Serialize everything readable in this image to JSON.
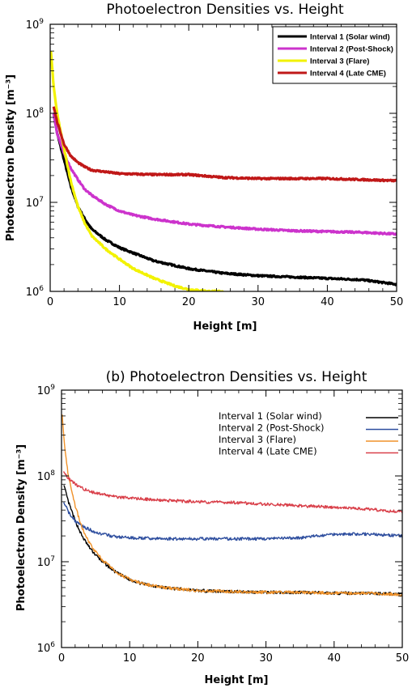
{
  "chart_data": [
    {
      "type": "line",
      "title": "Photoelectron Densities vs. Height",
      "xlabel": "Height [m]",
      "ylabel": "Photoelectron Density [m⁻³]",
      "xlim": [
        0,
        50
      ],
      "ylim": [
        1000000,
        1000000000
      ],
      "yscale": "log",
      "xticks": [
        "0",
        "10",
        "20",
        "30",
        "40",
        "50"
      ],
      "yticks": [
        {
          "base": "10",
          "exp": "6"
        },
        {
          "base": "10",
          "exp": "7"
        },
        {
          "base": "10",
          "exp": "8"
        },
        {
          "base": "10",
          "exp": "9"
        }
      ],
      "legend_position": "top-right",
      "series": [
        {
          "name": "Interval 1 (Solar wind)",
          "color": "#000000",
          "x": [
            0.5,
            1,
            2,
            3,
            4,
            5,
            6,
            8,
            10,
            12,
            15,
            20,
            25,
            30,
            35,
            40,
            45,
            50
          ],
          "y": [
            100000000,
            60000000,
            30000000,
            15000000,
            9000000,
            6500000,
            5000000,
            3800000,
            3100000,
            2700000,
            2200000,
            1800000,
            1600000,
            1500000,
            1450000,
            1400000,
            1350000,
            1200000
          ]
        },
        {
          "name": "Interval 2 (Post-Shock)",
          "color": "#cc33cc",
          "x": [
            0.5,
            1,
            2,
            3,
            4,
            5,
            6,
            8,
            10,
            12,
            15,
            20,
            25,
            30,
            35,
            40,
            45,
            50
          ],
          "y": [
            100000000,
            60000000,
            35000000,
            24000000,
            18000000,
            14000000,
            12000000,
            9500000,
            8000000,
            7200000,
            6500000,
            5700000,
            5300000,
            5000000,
            4800000,
            4700000,
            4600000,
            4400000
          ]
        },
        {
          "name": "Interval 3 (Flare)",
          "color": "#f2f200",
          "x": [
            0.1,
            0.5,
            1,
            2,
            3,
            4,
            5,
            6,
            8,
            10,
            12,
            15,
            18,
            20,
            23,
            25
          ],
          "y": [
            500000000,
            200000000,
            100000000,
            40000000,
            17000000,
            9000000,
            5800000,
            4200000,
            3000000,
            2300000,
            1800000,
            1400000,
            1150000,
            1050000,
            1000000,
            1000000
          ]
        },
        {
          "name": "Interval 4 (Late CME)",
          "color": "#c01818",
          "x": [
            0.5,
            1,
            2,
            3,
            4,
            5,
            6,
            8,
            10,
            15,
            20,
            25,
            30,
            35,
            40,
            45,
            50
          ],
          "y": [
            120000000,
            80000000,
            45000000,
            33000000,
            28000000,
            25000000,
            23000000,
            22000000,
            21000000,
            20500000,
            20500000,
            19000000,
            18500000,
            18500000,
            18500000,
            18000000,
            17500000
          ]
        }
      ]
    },
    {
      "type": "line",
      "title": "(b) Photoelectron Densities vs. Height",
      "xlabel": "Height [m]",
      "ylabel": "Photoelectron Density [m⁻³]",
      "xlim": [
        0,
        50
      ],
      "ylim": [
        1000000,
        1000000000
      ],
      "yscale": "log",
      "xticks": [
        "0",
        "10",
        "20",
        "30",
        "40",
        "50"
      ],
      "yticks": [
        {
          "base": "10",
          "exp": "6"
        },
        {
          "base": "10",
          "exp": "7"
        },
        {
          "base": "10",
          "exp": "8"
        },
        {
          "base": "10",
          "exp": "9"
        }
      ],
      "legend_position": "top-right",
      "series": [
        {
          "name": "Interval 1 (Solar wind)",
          "color": "#000000",
          "x": [
            0.3,
            1,
            2,
            3,
            4,
            5,
            6,
            8,
            10,
            12,
            15,
            20,
            25,
            30,
            35,
            40,
            45,
            50
          ],
          "y": [
            80000000,
            50000000,
            30000000,
            20000000,
            15000000,
            12000000,
            10000000,
            7500000,
            6200000,
            5500000,
            5000000,
            4600000,
            4500000,
            4400000,
            4400000,
            4300000,
            4300000,
            4200000
          ]
        },
        {
          "name": "Interval 2 (Post-Shock)",
          "color": "#2f4f9f",
          "x": [
            0.3,
            1,
            2,
            3,
            4,
            5,
            6,
            8,
            10,
            15,
            20,
            25,
            30,
            35,
            40,
            45,
            50
          ],
          "y": [
            50000000,
            38000000,
            30000000,
            26000000,
            24000000,
            22000000,
            21000000,
            19500000,
            19000000,
            18500000,
            18500000,
            18500000,
            18500000,
            19000000,
            21000000,
            21000000,
            20000000
          ]
        },
        {
          "name": "Interval 3 (Flare)",
          "color": "#f0922a",
          "x": [
            0.1,
            0.5,
            1,
            2,
            3,
            4,
            5,
            6,
            8,
            10,
            12,
            15,
            20,
            25,
            30,
            35,
            40,
            45,
            50
          ],
          "y": [
            500000000,
            200000000,
            100000000,
            45000000,
            25000000,
            17000000,
            13000000,
            10500000,
            7600000,
            6200000,
            5500000,
            5000000,
            4600000,
            4500000,
            4400000,
            4400000,
            4300000,
            4300000,
            4100000
          ]
        },
        {
          "name": "Interval 4 (Late CME)",
          "color": "#d9404a",
          "x": [
            0.3,
            1,
            2,
            3,
            4,
            5,
            6,
            8,
            10,
            15,
            20,
            25,
            30,
            35,
            40,
            45,
            50
          ],
          "y": [
            110000000,
            95000000,
            80000000,
            72000000,
            67000000,
            63000000,
            61000000,
            57000000,
            55000000,
            52000000,
            50000000,
            49000000,
            47000000,
            45000000,
            43000000,
            41000000,
            38000000
          ]
        }
      ]
    }
  ]
}
